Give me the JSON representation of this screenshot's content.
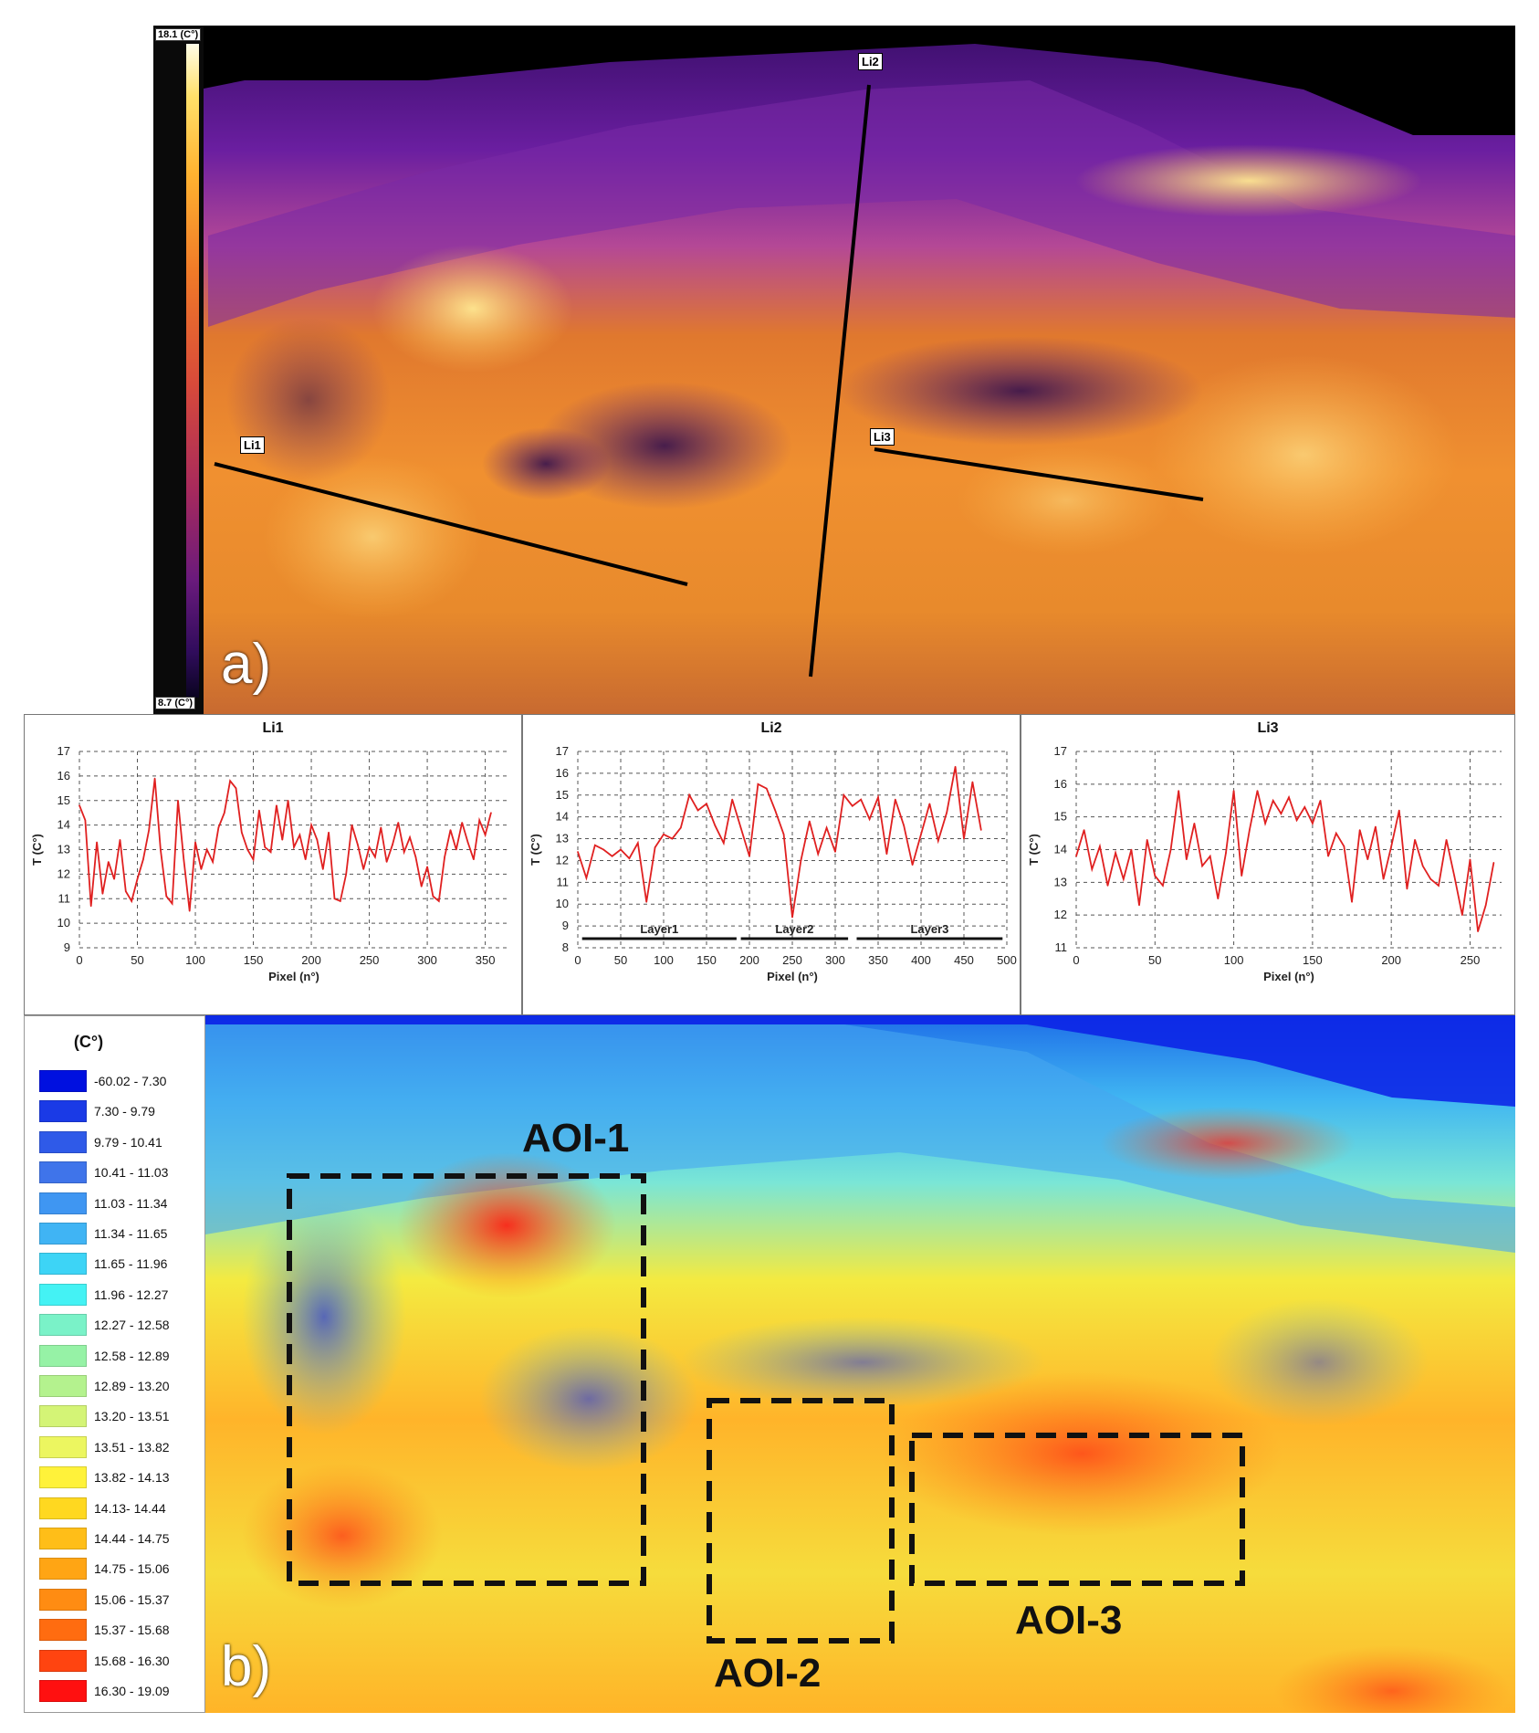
{
  "panel_a": {
    "letter": "a)",
    "scale_max": "18.1 (C°)",
    "scale_min": "8.7 (C°)",
    "line_tags": [
      "Li1",
      "Li2",
      "Li3"
    ]
  },
  "panel_b": {
    "letter": "b)",
    "aoi_labels": [
      "AOI-1",
      "AOI-2",
      "AOI-3"
    ]
  },
  "legend": {
    "title": "(C°)",
    "items": [
      {
        "label": "-60.02 - 7.30",
        "color": "#0010e0"
      },
      {
        "label": "7.30 - 9.79",
        "color": "#1a3ae6"
      },
      {
        "label": "9.79 - 10.41",
        "color": "#2f5ae8"
      },
      {
        "label": "10.41 - 11.03",
        "color": "#3f74ea"
      },
      {
        "label": "11.03 - 11.34",
        "color": "#3f96f2"
      },
      {
        "label": "11.34 - 11.65",
        "color": "#40b4f4"
      },
      {
        "label": "11.65 - 11.96",
        "color": "#3dd4f6"
      },
      {
        "label": "11.96 - 12.27",
        "color": "#44f2f4"
      },
      {
        "label": "12.27 - 12.58",
        "color": "#7af2c8"
      },
      {
        "label": "12.58 - 12.89",
        "color": "#96f2a6"
      },
      {
        "label": "12.89 - 13.20",
        "color": "#b4f28e"
      },
      {
        "label": "13.20 - 13.51",
        "color": "#d4f476"
      },
      {
        "label": "13.51 - 13.82",
        "color": "#ecf660"
      },
      {
        "label": "13.82 - 14.13",
        "color": "#fff23a"
      },
      {
        "label": "14.13- 14.44",
        "color": "#ffd820"
      },
      {
        "label": "14.44 - 14.75",
        "color": "#ffbe18"
      },
      {
        "label": "14.75 - 15.06",
        "color": "#ffa514"
      },
      {
        "label": "15.06 - 15.37",
        "color": "#ff8c12"
      },
      {
        "label": "15.37 - 15.68",
        "color": "#ff6c10"
      },
      {
        "label": "15.68 - 16.30",
        "color": "#ff4410"
      },
      {
        "label": "16.30 - 19.09",
        "color": "#ff1010"
      }
    ]
  },
  "chart_data": [
    {
      "type": "line",
      "title": "Li1",
      "xlabel": "Pixel (n°)",
      "ylabel": "T (C°)",
      "xlim": [
        0,
        370
      ],
      "ylim": [
        9,
        17
      ],
      "xticks": [
        0,
        50,
        100,
        150,
        200,
        250,
        300,
        350
      ],
      "yticks": [
        9,
        10,
        11,
        12,
        13,
        14,
        15,
        16,
        17
      ],
      "grid": true,
      "color": "#e02020",
      "series": [
        {
          "x": [
            0,
            5,
            10,
            15,
            20,
            25,
            30,
            35,
            40,
            45,
            50,
            55,
            60,
            65,
            70,
            75,
            80,
            85,
            90,
            95,
            100,
            105,
            110,
            115,
            120,
            125,
            130,
            135,
            140,
            145,
            150,
            155,
            160,
            165,
            170,
            175,
            180,
            185,
            190,
            195,
            200,
            205,
            210,
            215,
            220,
            225,
            230,
            235,
            240,
            245,
            250,
            255,
            260,
            265,
            270,
            275,
            280,
            285,
            290,
            295,
            300,
            305,
            310,
            315,
            320,
            325,
            330,
            335,
            340,
            345,
            350,
            355
          ],
          "y": [
            14.8,
            14.2,
            10.7,
            13.3,
            11.2,
            12.5,
            11.8,
            13.4,
            11.3,
            10.9,
            11.8,
            12.6,
            13.8,
            15.9,
            13.0,
            11.1,
            10.8,
            15.0,
            12.6,
            10.5,
            13.3,
            12.2,
            13.0,
            12.5,
            13.9,
            14.5,
            15.8,
            15.5,
            13.7,
            13.0,
            12.6,
            14.6,
            13.1,
            12.9,
            14.8,
            13.4,
            15.0,
            13.1,
            13.6,
            12.6,
            14.0,
            13.4,
            12.2,
            13.7,
            11.0,
            10.9,
            12.0,
            14.0,
            13.2,
            12.2,
            13.1,
            12.7,
            13.9,
            12.5,
            13.2,
            14.1,
            12.9,
            13.5,
            12.7,
            11.5,
            12.3,
            11.1,
            10.9,
            12.7,
            13.8,
            13.0,
            14.1,
            13.3,
            12.6,
            14.2,
            13.6,
            14.5
          ]
        }
      ]
    },
    {
      "type": "line",
      "title": "Li2",
      "xlabel": "Pixel (n°)",
      "ylabel": "T (C°)",
      "xlim": [
        0,
        500
      ],
      "ylim": [
        8,
        17
      ],
      "xticks": [
        0,
        50,
        100,
        150,
        200,
        250,
        300,
        350,
        400,
        450,
        500
      ],
      "yticks": [
        8,
        9,
        10,
        11,
        12,
        13,
        14,
        15,
        16,
        17
      ],
      "grid": true,
      "color": "#e02020",
      "annotations": [
        {
          "label": "Layer1",
          "x0": 5,
          "x1": 185
        },
        {
          "label": "Layer2",
          "x0": 190,
          "x1": 315
        },
        {
          "label": "Layer3",
          "x0": 325,
          "x1": 495
        }
      ],
      "series": [
        {
          "x": [
            0,
            10,
            20,
            30,
            40,
            50,
            60,
            70,
            80,
            90,
            100,
            110,
            120,
            130,
            140,
            150,
            160,
            170,
            180,
            190,
            200,
            210,
            220,
            230,
            240,
            250,
            260,
            270,
            280,
            290,
            300,
            310,
            320,
            330,
            340,
            350,
            360,
            370,
            380,
            390,
            400,
            410,
            420,
            430,
            440,
            450,
            460,
            470
          ],
          "y": [
            12.4,
            11.2,
            12.7,
            12.5,
            12.2,
            12.5,
            12.1,
            12.8,
            10.1,
            12.6,
            13.2,
            13.0,
            13.5,
            15.0,
            14.3,
            14.6,
            13.6,
            12.8,
            14.8,
            13.5,
            12.2,
            15.5,
            15.3,
            14.3,
            13.2,
            9.4,
            12.0,
            13.8,
            12.3,
            13.5,
            12.4,
            15.0,
            14.5,
            14.8,
            13.9,
            14.9,
            12.3,
            14.8,
            13.6,
            11.8,
            13.2,
            14.6,
            12.9,
            14.2,
            16.3,
            13.0,
            15.6,
            13.4
          ]
        }
      ]
    },
    {
      "type": "line",
      "title": "Li3",
      "xlabel": "Pixel (n°)",
      "ylabel": "T (C°)",
      "xlim": [
        0,
        270
      ],
      "ylim": [
        11,
        17
      ],
      "xticks": [
        0,
        50,
        100,
        150,
        200,
        250
      ],
      "yticks": [
        11,
        12,
        13,
        14,
        15,
        16,
        17
      ],
      "grid": true,
      "color": "#e02020",
      "series": [
        {
          "x": [
            0,
            5,
            10,
            15,
            20,
            25,
            30,
            35,
            40,
            45,
            50,
            55,
            60,
            65,
            70,
            75,
            80,
            85,
            90,
            95,
            100,
            105,
            110,
            115,
            120,
            125,
            130,
            135,
            140,
            145,
            150,
            155,
            160,
            165,
            170,
            175,
            180,
            185,
            190,
            195,
            200,
            205,
            210,
            215,
            220,
            225,
            230,
            235,
            240,
            245,
            250,
            255,
            260,
            265
          ],
          "y": [
            13.8,
            14.6,
            13.4,
            14.1,
            12.9,
            13.9,
            13.1,
            14.0,
            12.3,
            14.3,
            13.2,
            12.9,
            14.0,
            15.8,
            13.7,
            14.8,
            13.5,
            13.8,
            12.5,
            13.9,
            15.8,
            13.2,
            14.6,
            15.8,
            14.8,
            15.5,
            15.1,
            15.6,
            14.9,
            15.3,
            14.8,
            15.5,
            13.8,
            14.5,
            14.1,
            12.4,
            14.6,
            13.7,
            14.7,
            13.1,
            14.1,
            15.2,
            12.8,
            14.3,
            13.5,
            13.1,
            12.9,
            14.3,
            13.2,
            12.0,
            13.7,
            11.5,
            12.3,
            13.6
          ]
        }
      ]
    }
  ]
}
